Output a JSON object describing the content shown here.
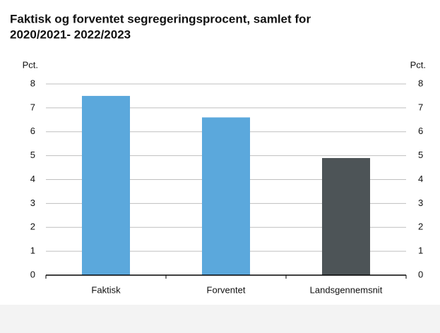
{
  "chart_data": {
    "type": "bar",
    "title": [
      "Faktisk og forventet segregeringsprocent, samlet for",
      "2020/2021- 2022/2023"
    ],
    "ylabel": "Pct.",
    "y2label": "Pct.",
    "categories": [
      "Faktisk",
      "Forventet",
      "Landsgennemsnit"
    ],
    "values": [
      7.5,
      6.6,
      4.9
    ],
    "colors": [
      "#5ba8dc",
      "#5ba8dc",
      "#4d5457"
    ],
    "ylim": [
      0,
      8
    ],
    "yticks": [
      0,
      1,
      2,
      3,
      4,
      5,
      6,
      7,
      8
    ],
    "y2lim": [
      0,
      8
    ],
    "y2ticks": [
      0,
      1,
      2,
      3,
      4,
      5,
      6,
      7,
      8
    ],
    "grid": true
  }
}
